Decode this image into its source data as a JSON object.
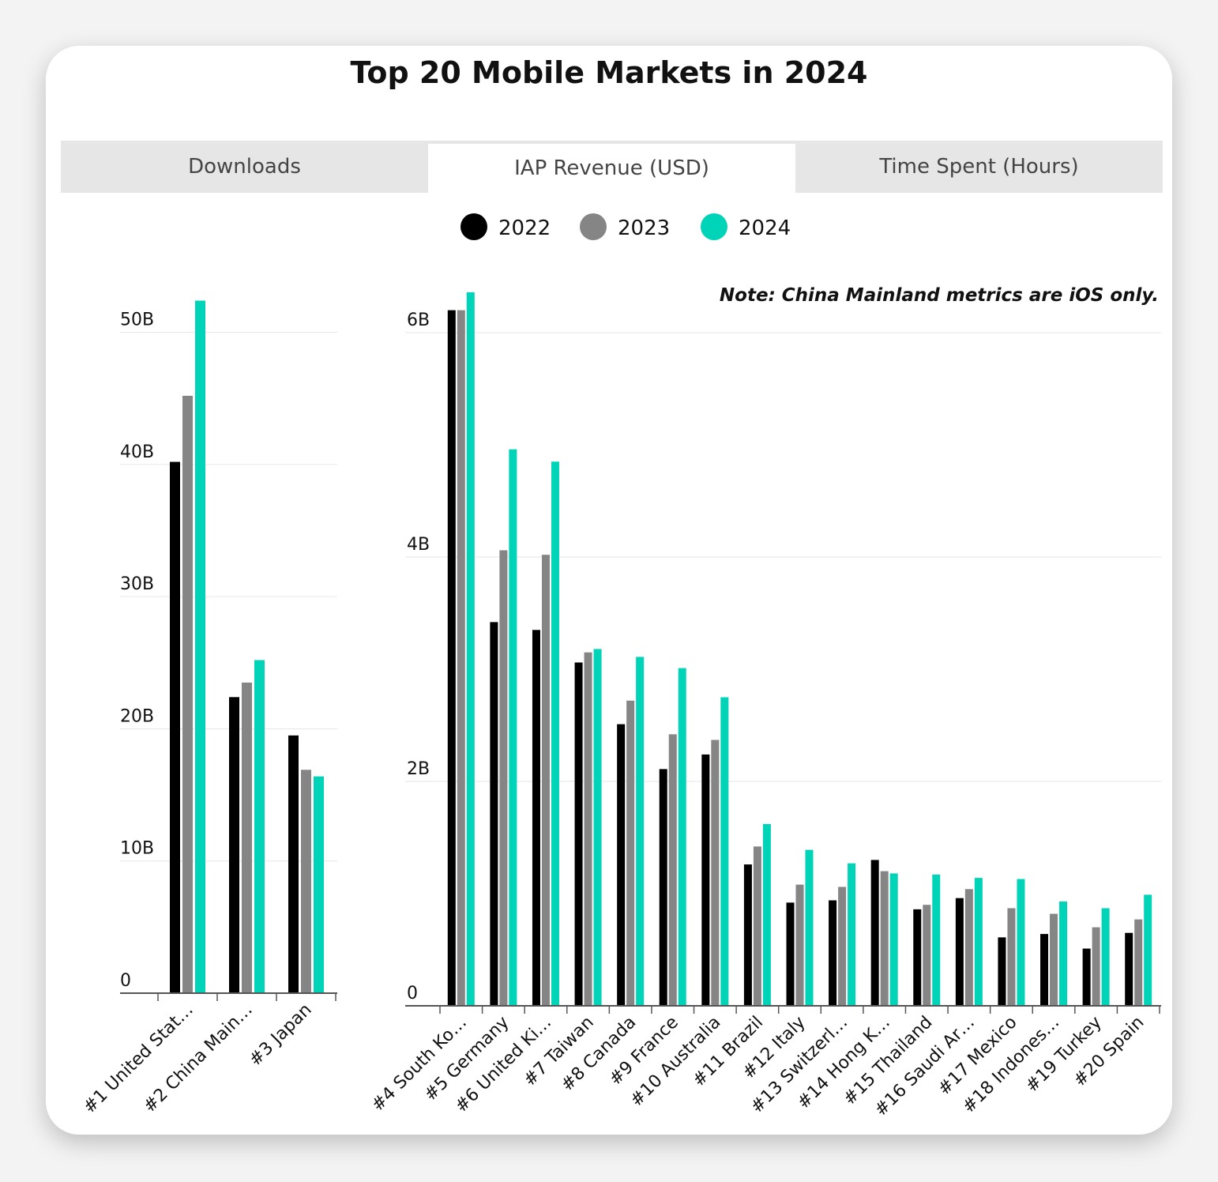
{
  "title": "Top 20 Mobile Markets in 2024",
  "tabs": [
    "Downloads",
    "IAP Revenue (USD)",
    "Time Spent (Hours)"
  ],
  "active_tab": 1,
  "chart_data": [
    {
      "type": "bar",
      "categories": [
        "#1 United Stat…",
        "#2 China Main…",
        "#3 Japan"
      ],
      "series": [
        {
          "name": "2022",
          "color": "#000000",
          "values": [
            40.2,
            22.4,
            19.5
          ]
        },
        {
          "name": "2023",
          "color": "#858585",
          "values": [
            45.2,
            23.5,
            16.9
          ]
        },
        {
          "name": "2024",
          "color": "#00d4b8",
          "values": [
            52.4,
            25.2,
            16.4
          ]
        }
      ],
      "ylim": [
        0,
        55
      ],
      "yticks": [
        0,
        {
          "value": 10,
          "label": "10B"
        },
        {
          "value": 20,
          "label": "20B"
        },
        {
          "value": 30,
          "label": "30B"
        },
        {
          "value": 40,
          "label": "40B"
        },
        {
          "value": 50,
          "label": "50B"
        }
      ],
      "grid": true
    },
    {
      "type": "bar",
      "note": "Note: China Mainland metrics are iOS only.",
      "categories": [
        "#4 South Ko…",
        "#5 Germany",
        "#6 United Ki…",
        "#7 Taiwan",
        "#8 Canada",
        "#9 France",
        "#10 Australia",
        "#11 Brazil",
        "#12 Italy",
        "#13 Switzerl…",
        "#14 Hong K…",
        "#15 Thailand",
        "#16 Saudi Ar…",
        "#17 Mexico",
        "#18 Indones…",
        "#19 Turkey",
        "#20 Spain"
      ],
      "series": [
        {
          "color": "#000000",
          "values": [
            6.2,
            3.42,
            3.35,
            3.06,
            2.51,
            2.11,
            2.24,
            1.26,
            0.92,
            0.94,
            1.3,
            0.86,
            0.96,
            0.61,
            0.64,
            0.51,
            0.65
          ]
        },
        {
          "color": "#858585",
          "values": [
            6.2,
            4.06,
            4.02,
            3.15,
            2.72,
            2.42,
            2.37,
            1.42,
            1.08,
            1.06,
            1.2,
            0.9,
            1.04,
            0.87,
            0.82,
            0.7,
            0.77
          ]
        },
        {
          "color": "#00d4b8",
          "values": [
            6.36,
            4.96,
            4.85,
            3.18,
            3.11,
            3.01,
            2.75,
            1.62,
            1.39,
            1.27,
            1.18,
            1.17,
            1.14,
            1.13,
            0.93,
            0.87,
            0.99
          ]
        }
      ],
      "ylim": [
        0,
        6.5
      ],
      "yticks": [
        0,
        {
          "value": 2,
          "label": "2B"
        },
        {
          "value": 4,
          "label": "4B"
        },
        {
          "value": 6,
          "label": "6B"
        }
      ],
      "grid": true
    }
  ]
}
